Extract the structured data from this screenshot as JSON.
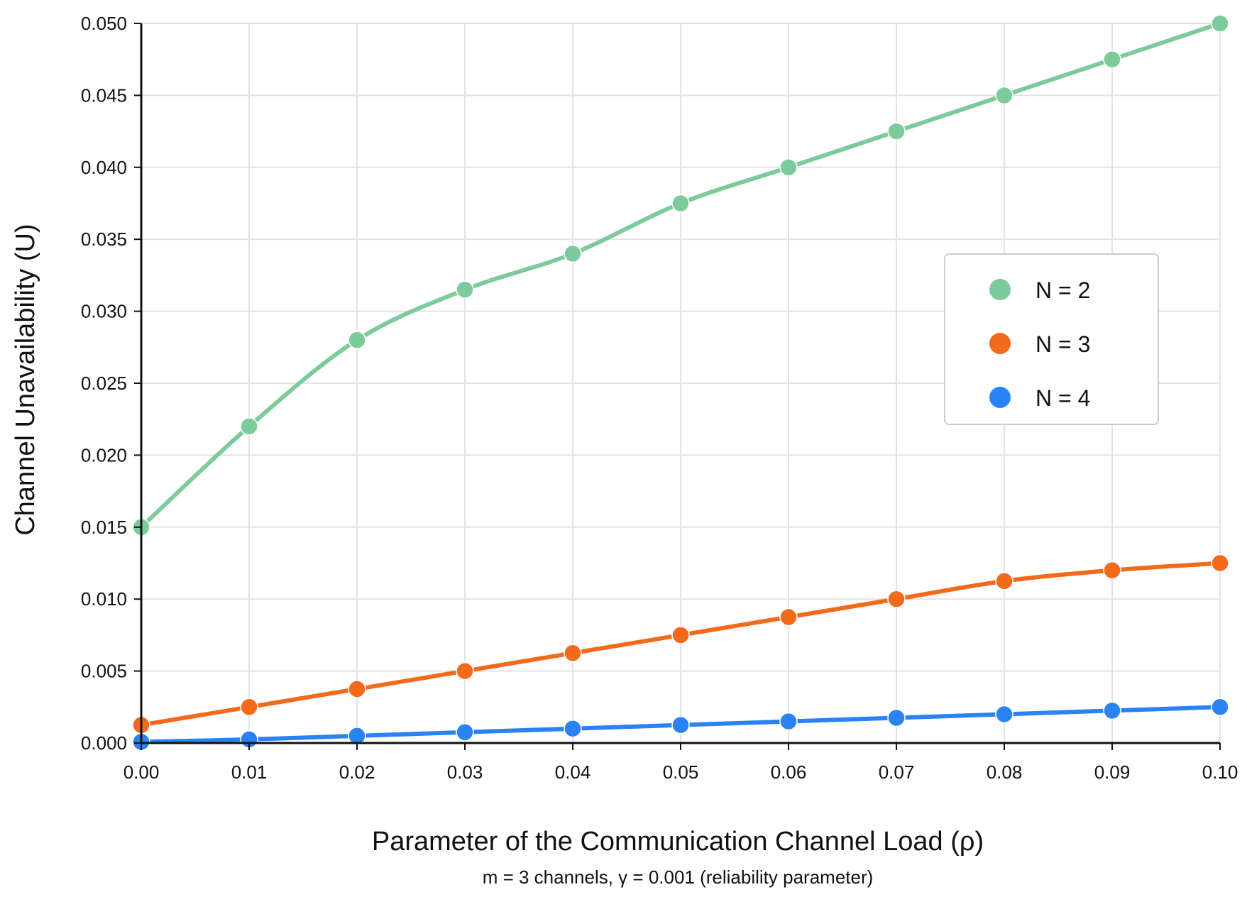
{
  "chart_data": {
    "type": "line",
    "xlabel": "Parameter of the Communication Channel Load (ρ)",
    "ylabel": "Channel Unavailability (U)",
    "subtitle": "m = 3 channels, γ = 0.001 (reliability parameter)",
    "xlim": [
      0,
      0.1
    ],
    "ylim": [
      0,
      0.05
    ],
    "grid": true,
    "legend_position": "right",
    "x": [
      0.0,
      0.01,
      0.02,
      0.03,
      0.04,
      0.05,
      0.06,
      0.07,
      0.08,
      0.09,
      0.1
    ],
    "x_tick_labels": [
      "0.00",
      "0.01",
      "0.02",
      "0.03",
      "0.04",
      "0.05",
      "0.06",
      "0.07",
      "0.08",
      "0.09",
      "0.10"
    ],
    "y_ticks": [
      0,
      0.005,
      0.01,
      0.015,
      0.02,
      0.025,
      0.03,
      0.035,
      0.04,
      0.045,
      0.05
    ],
    "y_tick_labels": [
      "0.000",
      "0.005",
      "0.010",
      "0.015",
      "0.020",
      "0.025",
      "0.030",
      "0.035",
      "0.040",
      "0.045",
      "0.050"
    ],
    "series": [
      {
        "name": "N = 2",
        "color": "#7dcb9b",
        "values": [
          0.015,
          0.022,
          0.028,
          0.0315,
          0.034,
          0.0375,
          0.04,
          0.0425,
          0.045,
          0.0475,
          0.05
        ]
      },
      {
        "name": "N = 3",
        "color": "#f46a1b",
        "values": [
          0.00125,
          0.0025,
          0.00375,
          0.005,
          0.00625,
          0.0075,
          0.00875,
          0.01,
          0.01125,
          0.012,
          0.0125
        ]
      },
      {
        "name": "N = 4",
        "color": "#2a83f3",
        "values": [
          8e-05,
          0.00025,
          0.0005,
          0.00075,
          0.001,
          0.00125,
          0.0015,
          0.00175,
          0.002,
          0.00225,
          0.0025
        ]
      }
    ]
  }
}
